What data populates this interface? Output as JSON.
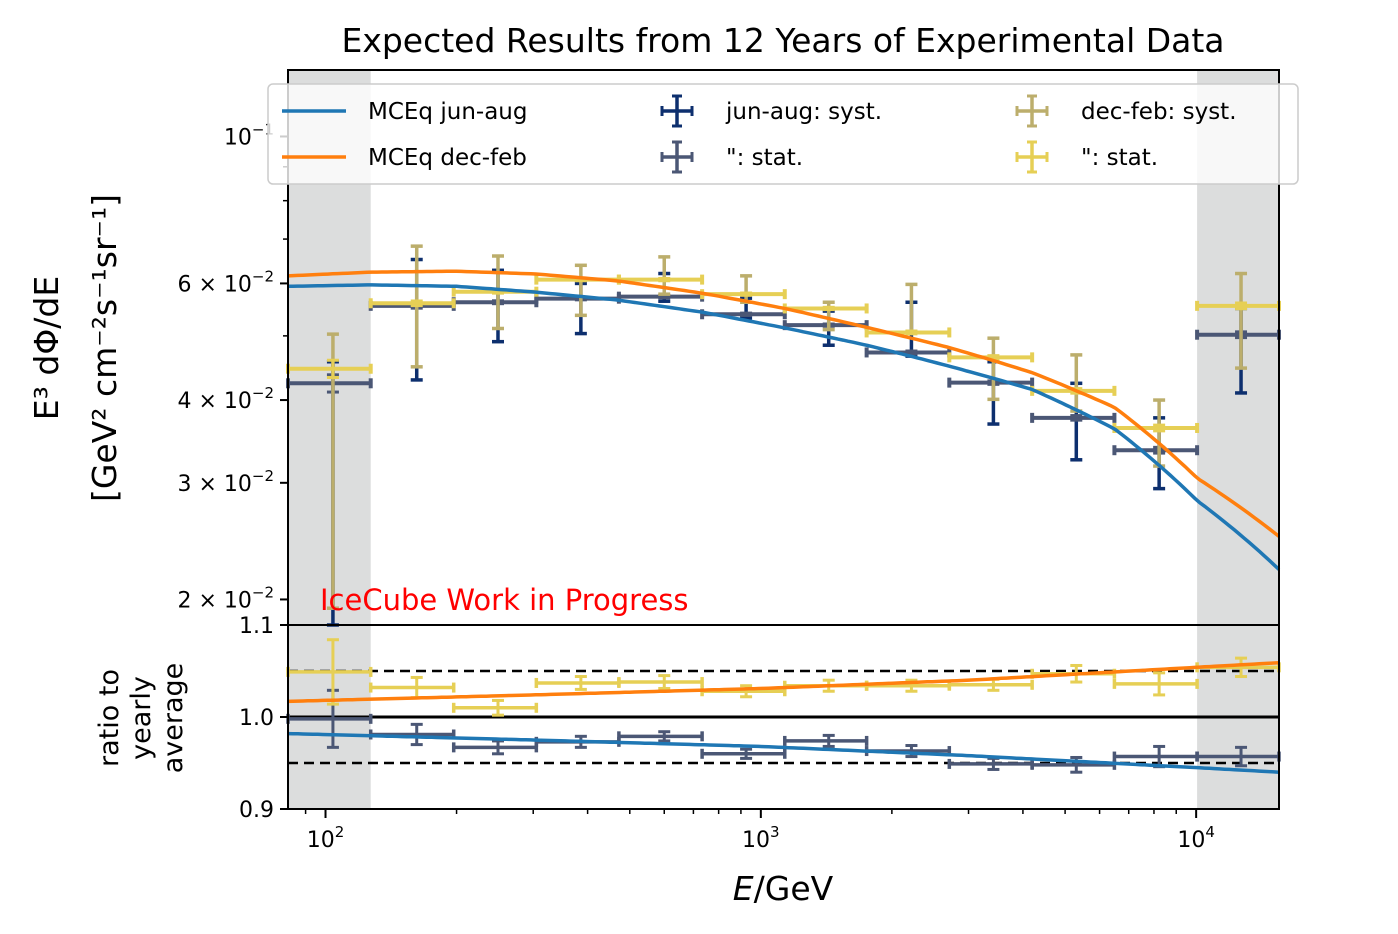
{
  "chart_data": {
    "type": "scatter",
    "title": "Expected Results from 12 Years of Experimental Data",
    "xlabel": "E/GeV",
    "xscale": "log",
    "xlim": [
      82,
      15500
    ],
    "x_tick_labels": [
      {
        "value": 100,
        "base": "10",
        "exp": "2"
      },
      {
        "value": 1000,
        "base": "10",
        "exp": "3"
      },
      {
        "value": 10000,
        "base": "10",
        "exp": "4"
      }
    ],
    "watermark": "IceCube Work in Progress",
    "watermark_color": "#ff0000",
    "excluded_regions": [
      [
        82,
        127
      ],
      [
        10050,
        15500
      ]
    ],
    "excluded_color": "#dcdddd",
    "bin_edges": [
      82,
      127,
      197,
      305,
      472,
      733,
      1135,
      1750,
      2710,
      4200,
      6490,
      10050,
      15500
    ],
    "bin_centers": [
      104,
      162,
      249,
      386,
      600,
      925,
      1432,
      2218,
      3422,
      5305,
      8222,
      12680
    ],
    "upper": {
      "ylabel_line1": "E³ dΦ/dE",
      "ylabel_line2": "[GeV² cm⁻²s⁻¹sr⁻¹]",
      "yscale": "log",
      "ylim": [
        0.0183,
        0.126
      ],
      "y_tick_labels": [
        {
          "value": 0.1,
          "mant": "",
          "base": "10",
          "exp": "−1"
        },
        {
          "value": 0.06,
          "mant": "6 × ",
          "base": "10",
          "exp": "−2"
        },
        {
          "value": 0.04,
          "mant": "4 × ",
          "base": "10",
          "exp": "−2"
        },
        {
          "value": 0.03,
          "mant": "3 × ",
          "base": "10",
          "exp": "−2"
        },
        {
          "value": 0.02,
          "mant": "2 × ",
          "base": "10",
          "exp": "−2"
        }
      ],
      "minor_ticks": [
        0.05,
        0.07,
        0.08,
        0.09
      ],
      "models": [
        {
          "name": "MCEq jun-aug",
          "color": "#1f77b4",
          "x": [
            82,
            127,
            200,
            305,
            472,
            733,
            1135,
            1750,
            2710,
            4200,
            6490,
            10050,
            15500
          ],
          "y": [
            0.0594,
            0.0597,
            0.0594,
            0.0582,
            0.0566,
            0.0543,
            0.0514,
            0.0484,
            0.045,
            0.0415,
            0.0362,
            0.0282,
            0.0222
          ]
        },
        {
          "name": "MCEq dec-feb",
          "color": "#ff7f0e",
          "x": [
            82,
            127,
            200,
            305,
            472,
            733,
            1135,
            1750,
            2710,
            4200,
            6490,
            10050,
            15500
          ],
          "y": [
            0.0616,
            0.0624,
            0.0626,
            0.062,
            0.0605,
            0.058,
            0.055,
            0.0515,
            0.048,
            0.044,
            0.039,
            0.0305,
            0.0249
          ]
        }
      ],
      "series": [
        {
          "name": "jun-aug",
          "syst_label": "jun-aug: syst.",
          "stat_label": "\": stat.",
          "syst_color": "#0d2f6e",
          "stat_color": "#4b5775",
          "values": [
            0.0424,
            0.0555,
            0.0562,
            0.0569,
            0.0573,
            0.0539,
            0.0519,
            0.0472,
            0.0425,
            0.0376,
            0.0336,
            0.0502
          ],
          "syst_hi": [
            0.0457,
            0.0652,
            0.0628,
            0.06,
            0.0621,
            0.057,
            0.0545,
            0.0562,
            0.0457,
            0.0424,
            0.0376,
            0.055
          ],
          "syst_lo": [
            0.018,
            0.0429,
            0.049,
            0.0504,
            0.0564,
            0.0532,
            0.0484,
            0.0466,
            0.0368,
            0.0325,
            0.0294,
            0.041
          ],
          "stat_rel": [
            0.03,
            0.008,
            0.005,
            0.004,
            0.004,
            0.004,
            0.004,
            0.005,
            0.006,
            0.008,
            0.01,
            0.01
          ]
        },
        {
          "name": "dec-feb",
          "syst_label": "dec-feb: syst.",
          "stat_label": "\": stat.",
          "syst_color": "#bcae6c",
          "stat_color": "#e6cf55",
          "values": [
            0.0446,
            0.056,
            0.0583,
            0.0608,
            0.0608,
            0.0578,
            0.055,
            0.0506,
            0.0464,
            0.0413,
            0.0363,
            0.0555
          ],
          "syst_hi": [
            0.0503,
            0.0683,
            0.066,
            0.0639,
            0.0658,
            0.0616,
            0.0562,
            0.0598,
            0.0496,
            0.0468,
            0.04,
            0.0621
          ],
          "syst_lo": [
            0.0194,
            0.0449,
            0.0513,
            0.0537,
            0.0578,
            0.0562,
            0.0511,
            0.0507,
            0.0401,
            0.0385,
            0.0318,
            0.0447
          ],
          "stat_rel": [
            0.03,
            0.008,
            0.005,
            0.004,
            0.004,
            0.004,
            0.004,
            0.005,
            0.006,
            0.008,
            0.01,
            0.01
          ]
        }
      ]
    },
    "lower": {
      "ylabel": [
        "ratio to",
        "yearly",
        "average"
      ],
      "ylim": [
        0.9,
        1.1
      ],
      "y_tick_labels": [
        {
          "value": 1.1,
          "label": "1.1"
        },
        {
          "value": 1.0,
          "label": "1.0"
        },
        {
          "value": 0.9,
          "label": "0.9"
        }
      ],
      "reference_line": 1.0,
      "dashed_lines": [
        1.05,
        0.95
      ],
      "models": [
        {
          "name": "MCEq jun-aug",
          "color": "#1f77b4",
          "x": [
            82,
            300,
            1000,
            3000,
            10000,
            15500
          ],
          "y": [
            0.982,
            0.975,
            0.968,
            0.958,
            0.945,
            0.94
          ]
        },
        {
          "name": "MCEq dec-feb",
          "color": "#ff7f0e",
          "x": [
            82,
            300,
            1000,
            3000,
            10000,
            15500
          ],
          "y": [
            1.017,
            1.024,
            1.031,
            1.04,
            1.054,
            1.059
          ]
        }
      ],
      "series": [
        {
          "name": "jun-aug",
          "color": "#4b5775",
          "values": [
            0.998,
            0.981,
            0.967,
            0.973,
            0.979,
            0.96,
            0.974,
            0.963,
            0.949,
            0.948,
            0.957,
            0.957
          ],
          "err": [
            0.031,
            0.011,
            0.007,
            0.006,
            0.005,
            0.005,
            0.006,
            0.006,
            0.006,
            0.008,
            0.011,
            0.01
          ]
        },
        {
          "name": "dec-feb",
          "color": "#e6cf55",
          "values": [
            1.049,
            1.032,
            1.01,
            1.037,
            1.038,
            1.028,
            1.034,
            1.034,
            1.035,
            1.047,
            1.036,
            1.054
          ],
          "err": [
            0.035,
            0.011,
            0.008,
            0.007,
            0.007,
            0.006,
            0.006,
            0.006,
            0.006,
            0.009,
            0.012,
            0.01
          ]
        }
      ]
    },
    "legend": {
      "placement": "top",
      "columns": 3,
      "entries": [
        {
          "label": "MCEq jun-aug",
          "kind": "line",
          "color": "#1f77b4"
        },
        {
          "label": "MCEq dec-feb",
          "kind": "line",
          "color": "#ff7f0e"
        },
        {
          "label": "jun-aug: syst.",
          "kind": "errorbar",
          "color": "#0d2f6e"
        },
        {
          "label": "\": stat.",
          "kind": "errorbar",
          "color": "#4b5775"
        },
        {
          "label": "dec-feb: syst.",
          "kind": "errorbar",
          "color": "#bcae6c"
        },
        {
          "label": "\": stat.",
          "kind": "errorbar",
          "color": "#e6cf55"
        }
      ]
    }
  }
}
